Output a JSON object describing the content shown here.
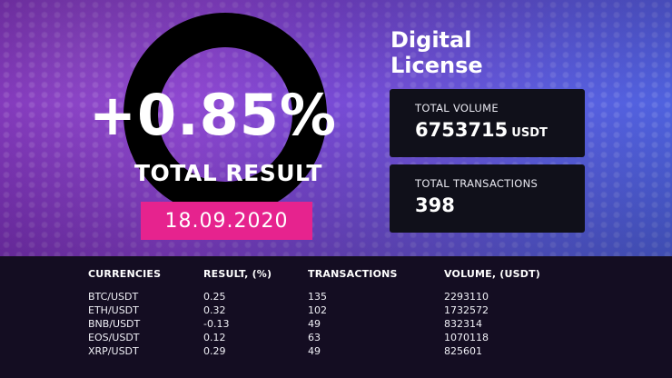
{
  "brand": {
    "line1": "Digital",
    "line2": "License"
  },
  "result": {
    "value": "+0.85%",
    "label": "TOTAL RESULT",
    "date": "18.09.2020"
  },
  "stats": {
    "volume": {
      "label": "TOTAL VOLUME",
      "value": "6753715",
      "unit": "USDT"
    },
    "transactions": {
      "label": "TOTAL TRANSACTIONS",
      "value": "398"
    }
  },
  "table": {
    "headers": [
      "CURRENCIES",
      "RESULT, (%)",
      "TRANSACTIONS",
      "VOLUME, (USDT)"
    ],
    "rows": [
      [
        "BTC/USDT",
        "0.25",
        "135",
        "2293110"
      ],
      [
        "ETH/USDT",
        "0.32",
        "102",
        "1732572"
      ],
      [
        "BNB/USDT",
        "-0.13",
        "49",
        "832314"
      ],
      [
        "EOS/USDT",
        "0.12",
        "63",
        "1070118"
      ],
      [
        "XRP/USDT",
        "0.29",
        "49",
        "825601"
      ]
    ]
  },
  "colors": {
    "accent": "#e6238e",
    "card": "#10101a",
    "table_bg": "#140d22",
    "bg_purple": "#7a2bb5",
    "bg_blue": "#4d63df"
  }
}
